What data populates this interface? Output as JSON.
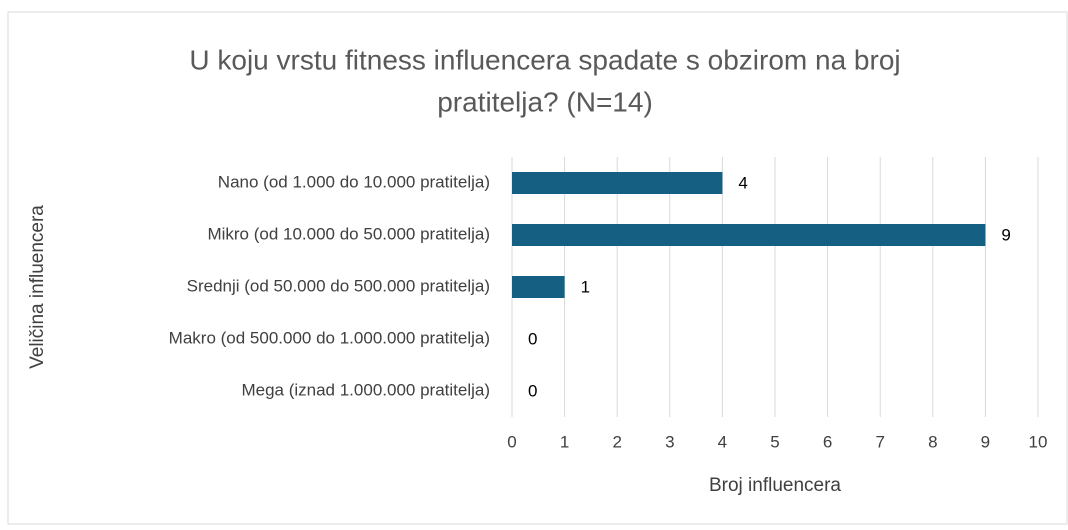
{
  "chart_data": {
    "type": "barh",
    "title": [
      "U koju vrstu fitness influencera spadate s obzirom na broj",
      "pratitelja? (N=14)"
    ],
    "x_label": "Broj influencera",
    "y_label": "Veličina influencera",
    "categories": [
      "Nano (od 1.000 do 10.000 pratitelja)",
      "Mikro (od 10.000 do 50.000 pratitelja)",
      "Srednji (od 50.000 do 500.000 pratitelja)",
      "Makro (od 500.000 do 1.000.000 pratitelja)",
      "Mega (iznad 1.000.000 pratitelja)"
    ],
    "values": [
      4,
      9,
      1,
      0,
      0
    ],
    "color": "#156082",
    "xlim": [
      0,
      10
    ],
    "xticks": [
      0,
      1,
      2,
      3,
      4,
      5,
      6,
      7,
      8,
      9,
      10
    ],
    "grid": true
  }
}
